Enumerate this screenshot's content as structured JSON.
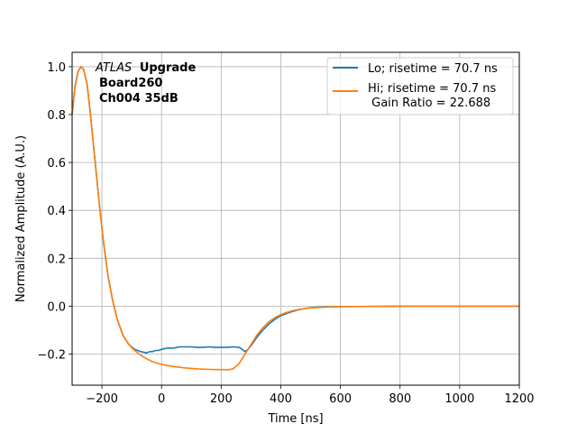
{
  "chart_data": {
    "type": "line",
    "xlabel": "Time [ns]",
    "ylabel": "Normalized Amplitude (A.U.)",
    "xlim": [
      -300,
      1200
    ],
    "ylim": [
      -0.33,
      1.06
    ],
    "xticks": [
      -200,
      0,
      200,
      400,
      600,
      800,
      1000,
      1200
    ],
    "xtick_labels": [
      "−200",
      "0",
      "200",
      "400",
      "600",
      "800",
      "1000",
      "1200"
    ],
    "yticks": [
      -0.2,
      0.0,
      0.2,
      0.4,
      0.6,
      0.8,
      1.0
    ],
    "ytick_labels": [
      "−0.2",
      "0.0",
      "0.2",
      "0.4",
      "0.6",
      "0.8",
      "1.0"
    ],
    "grid": true,
    "legend_position": "top-right",
    "annotation": {
      "line1_italic": "ATLAS",
      "line1_bold": "Upgrade",
      "line2": "Board260",
      "line3": "Ch004 35dB"
    },
    "series": [
      {
        "name": "Lo; risetime = 70.7 ns",
        "color": "#1f77b4",
        "x": [
          -300,
          -290,
          -280,
          -270,
          -262,
          -250,
          -240,
          -225,
          -210,
          -195,
          -180,
          -165,
          -150,
          -130,
          -110,
          -90,
          -70,
          -50,
          -40,
          -30,
          -20,
          -10,
          0,
          20,
          40,
          60,
          80,
          100,
          120,
          140,
          160,
          180,
          200,
          220,
          240,
          260,
          270,
          280,
          290,
          300,
          320,
          340,
          360,
          380,
          400,
          420,
          440,
          460,
          480,
          500,
          550,
          600,
          700,
          800,
          900,
          1000,
          1100,
          1200
        ],
        "y": [
          0.8,
          0.92,
          0.98,
          1.0,
          0.99,
          0.93,
          0.82,
          0.63,
          0.44,
          0.27,
          0.13,
          0.03,
          -0.05,
          -0.12,
          -0.16,
          -0.18,
          -0.19,
          -0.195,
          -0.19,
          -0.19,
          -0.185,
          -0.185,
          -0.18,
          -0.175,
          -0.175,
          -0.17,
          -0.17,
          -0.17,
          -0.172,
          -0.172,
          -0.17,
          -0.172,
          -0.172,
          -0.172,
          -0.17,
          -0.172,
          -0.18,
          -0.19,
          -0.18,
          -0.165,
          -0.13,
          -0.1,
          -0.075,
          -0.055,
          -0.04,
          -0.03,
          -0.022,
          -0.015,
          -0.01,
          -0.006,
          -0.003,
          -0.002,
          -0.001,
          0.0,
          0.0,
          0.0,
          0.0,
          0.0
        ]
      },
      {
        "name": "Hi; risetime = 70.7 ns\n Gain Ratio = 22.688",
        "color": "#ff7f0e",
        "x": [
          -300,
          -290,
          -280,
          -270,
          -262,
          -250,
          -240,
          -225,
          -210,
          -195,
          -180,
          -165,
          -150,
          -130,
          -110,
          -90,
          -70,
          -50,
          -30,
          -10,
          0,
          20,
          40,
          60,
          80,
          100,
          120,
          140,
          160,
          180,
          200,
          220,
          240,
          260,
          280,
          300,
          320,
          340,
          360,
          380,
          400,
          420,
          440,
          460,
          480,
          500,
          550,
          600,
          700,
          800,
          900,
          1000,
          1100,
          1200
        ],
        "y": [
          0.8,
          0.92,
          0.98,
          1.0,
          0.99,
          0.93,
          0.82,
          0.63,
          0.44,
          0.27,
          0.13,
          0.03,
          -0.05,
          -0.12,
          -0.16,
          -0.185,
          -0.205,
          -0.22,
          -0.232,
          -0.24,
          -0.243,
          -0.248,
          -0.252,
          -0.255,
          -0.258,
          -0.26,
          -0.262,
          -0.263,
          -0.264,
          -0.265,
          -0.265,
          -0.266,
          -0.262,
          -0.24,
          -0.2,
          -0.16,
          -0.12,
          -0.09,
          -0.065,
          -0.048,
          -0.035,
          -0.026,
          -0.019,
          -0.014,
          -0.01,
          -0.007,
          -0.004,
          -0.002,
          -0.001,
          0.0,
          0.0,
          0.0,
          0.0,
          0.0
        ]
      }
    ]
  }
}
